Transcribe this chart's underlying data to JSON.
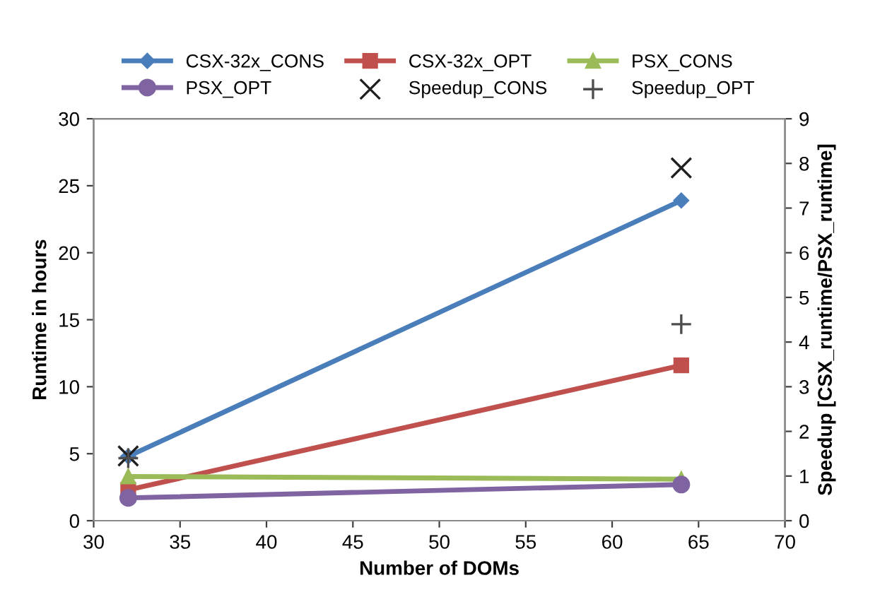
{
  "chart_data": {
    "type": "line",
    "xlabel": "Number of DOMs",
    "ylabel": "Runtime in hours",
    "y2label": "Speedup [CSX_runtime/PSX_runtime]",
    "x": [
      32,
      64
    ],
    "xlim": [
      30,
      70
    ],
    "xticks": [
      30,
      35,
      40,
      45,
      50,
      55,
      60,
      65,
      70
    ],
    "ylim": [
      0,
      30
    ],
    "yticks": [
      0,
      5,
      10,
      15,
      20,
      25,
      30
    ],
    "y2lim": [
      0,
      9
    ],
    "y2ticks": [
      0,
      1,
      2,
      3,
      4,
      5,
      6,
      7,
      8,
      9
    ],
    "grid": false,
    "legend": "top",
    "series": [
      {
        "name": "CSX-32x_CONS",
        "color": "#4a7ebb",
        "values": [
          4.8,
          23.9
        ],
        "marker": "diamond",
        "line_style": "solid"
      },
      {
        "name": "CSX-32x_OPT",
        "color": "#c0504d",
        "values": [
          2.3,
          11.6
        ],
        "marker": "square",
        "line_style": "solid"
      },
      {
        "name": "PSX_CONS",
        "color": "#9bbb59",
        "values": [
          3.3,
          3.1
        ],
        "marker": "triangle",
        "line_style": "solid"
      },
      {
        "name": "PSX_OPT",
        "color": "#8064a2",
        "values": [
          1.7,
          2.7
        ],
        "marker": "circle",
        "line_style": "solid"
      },
      {
        "name": "Speedup_CONS",
        "color": "#1f1f1f",
        "values": [
          1.45,
          7.9
        ],
        "axis": "y2",
        "type": "scatter",
        "marker": "cross"
      },
      {
        "name": "Speedup_OPT",
        "color": "#4d4d4d",
        "values": [
          1.4,
          4.4
        ],
        "axis": "y2",
        "type": "scatter",
        "marker": "plus"
      }
    ]
  }
}
